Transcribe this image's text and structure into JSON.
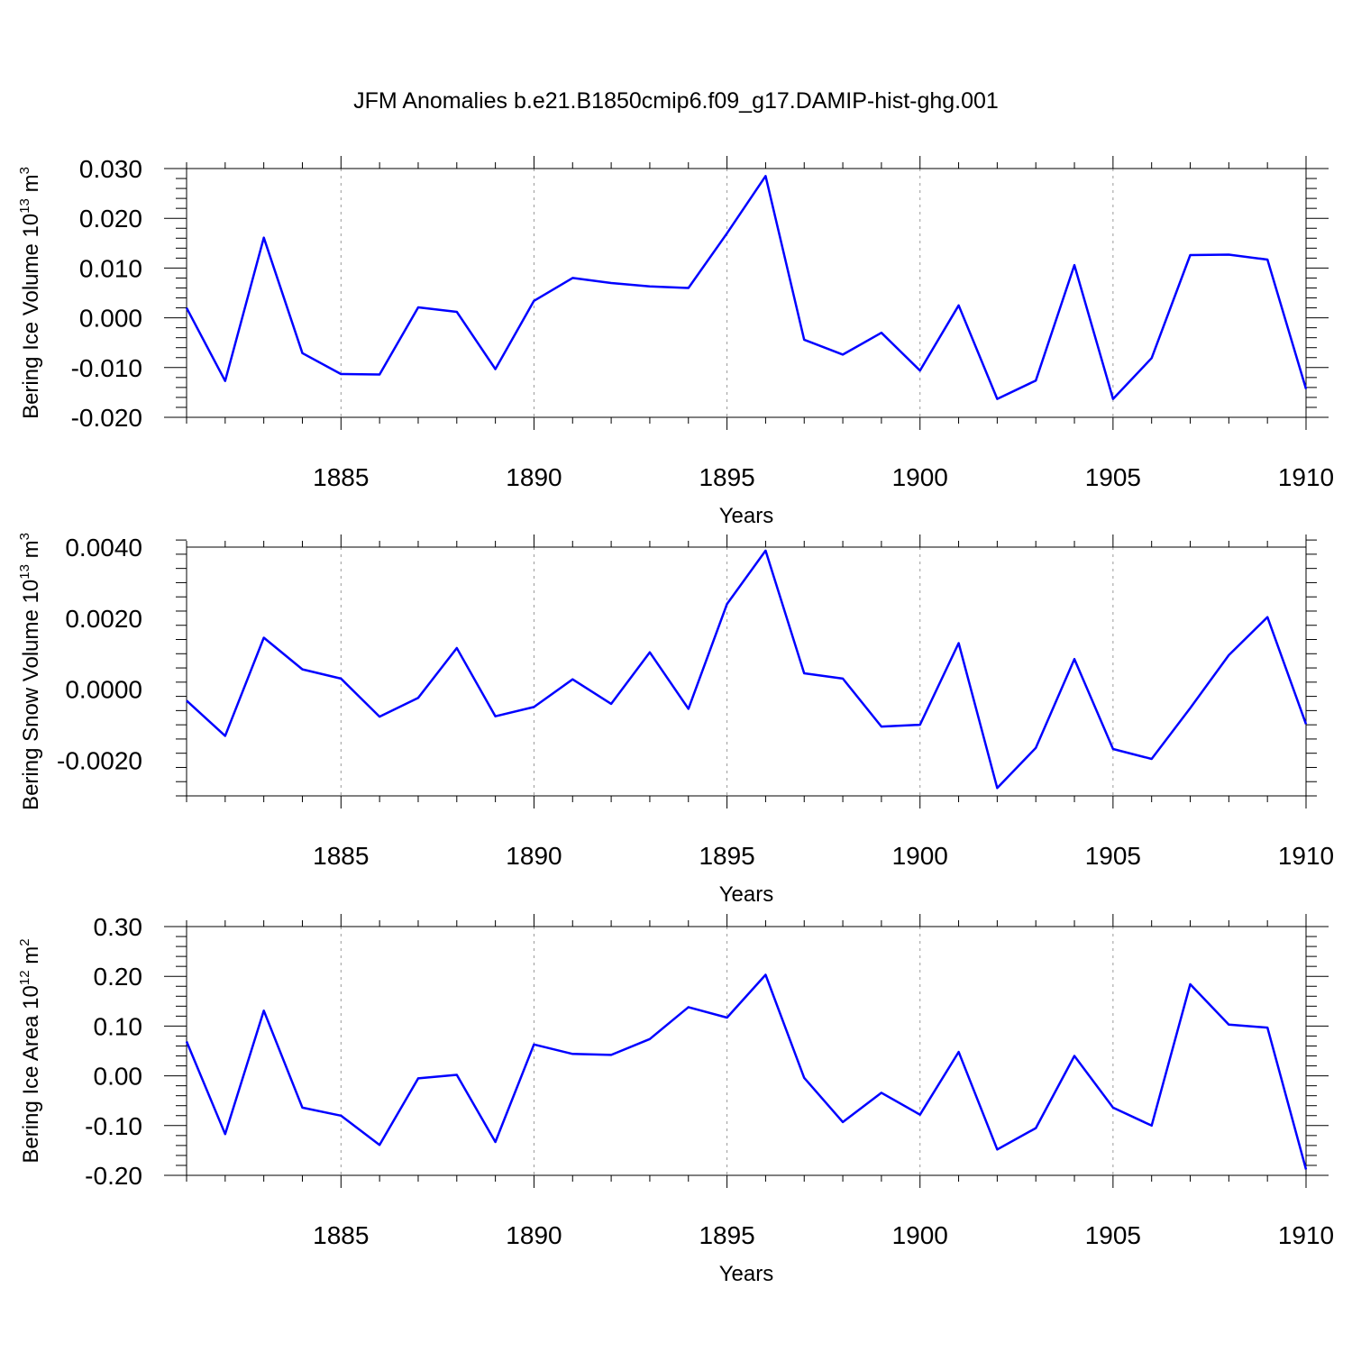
{
  "title": "JFM Anomalies b.e21.B1850cmip6.f09_g17.DAMIP-hist-ghg.001",
  "colors": {
    "line": "#0000ff",
    "axis": "#000000",
    "grid": "#999999"
  },
  "chart_data": [
    {
      "type": "line",
      "ylabel": "Bering Ice Volume 10",
      "ylabel_exp": "13",
      "ylabel_unit": " m",
      "ylabel_unit_exp": "3",
      "xlabel": "Years",
      "xlim": [
        1881,
        1910
      ],
      "ylim": [
        -0.02,
        0.03
      ],
      "yticks": [
        -0.02,
        -0.01,
        0.0,
        0.01,
        0.02,
        0.03
      ],
      "ytick_labels": [
        "-0.020",
        "-0.010",
        "0.000",
        "0.010",
        "0.020",
        "0.030"
      ],
      "xticks": [
        1885,
        1890,
        1895,
        1900,
        1905,
        1910
      ],
      "xtick_labels": [
        "1885",
        "1890",
        "1895",
        "1900",
        "1905",
        "1910"
      ],
      "x_minor_step": 1,
      "y_minor_step": 0.002,
      "grid": "vertical dotted at major x ticks",
      "series": [
        {
          "x": [
            1881,
            1882,
            1883,
            1884,
            1885,
            1886,
            1887,
            1888,
            1889,
            1890,
            1891,
            1892,
            1893,
            1894,
            1895,
            1896,
            1897,
            1898,
            1899,
            1900,
            1901,
            1902,
            1903,
            1904,
            1905,
            1906,
            1907,
            1908,
            1909,
            1910
          ],
          "values": [
            0.002,
            -0.0127,
            0.0161,
            -0.0071,
            -0.0113,
            -0.0114,
            0.0021,
            0.0012,
            -0.0103,
            0.0034,
            0.008,
            0.007,
            0.0063,
            0.006,
            0.017,
            0.0285,
            -0.0044,
            -0.0074,
            -0.003,
            -0.0106,
            0.0025,
            -0.0163,
            -0.0126,
            0.0106,
            -0.0163,
            -0.0081,
            0.0126,
            0.0127,
            0.0117,
            -0.0143
          ]
        }
      ]
    },
    {
      "type": "line",
      "ylabel": "Bering Snow Volume 10",
      "ylabel_exp": "13",
      "ylabel_unit": " m",
      "ylabel_unit_exp": "3",
      "xlabel": "Years",
      "xlim": [
        1881,
        1910
      ],
      "ylim": [
        -0.003,
        0.004
      ],
      "yticks": [
        -0.002,
        0.0,
        0.002,
        0.004
      ],
      "ytick_labels": [
        "-0.0020",
        "0.0000",
        "0.0020",
        "0.0040"
      ],
      "xticks": [
        1885,
        1890,
        1895,
        1900,
        1905,
        1910
      ],
      "xtick_labels": [
        "1885",
        "1890",
        "1895",
        "1900",
        "1905",
        "1910"
      ],
      "x_minor_step": 1,
      "y_minor_step": 0.0004,
      "grid": "vertical dotted at major x ticks",
      "series": [
        {
          "x": [
            1881,
            1882,
            1883,
            1884,
            1885,
            1886,
            1887,
            1888,
            1889,
            1890,
            1891,
            1892,
            1893,
            1894,
            1895,
            1896,
            1897,
            1898,
            1899,
            1900,
            1901,
            1902,
            1903,
            1904,
            1905,
            1906,
            1907,
            1908,
            1909,
            1910
          ],
          "values": [
            -0.00032,
            -0.00131,
            0.00145,
            0.00056,
            0.0003,
            -0.00077,
            -0.00024,
            0.00116,
            -0.00076,
            -0.0005,
            0.00028,
            -0.00041,
            0.00104,
            -0.00055,
            0.0024,
            0.0039,
            0.00045,
            0.0003,
            -0.00105,
            -0.001,
            0.0013,
            -0.00278,
            -0.00165,
            0.00085,
            -0.00168,
            -0.00196,
            -0.00053,
            0.00096,
            0.00203,
            -0.00098
          ]
        }
      ]
    },
    {
      "type": "line",
      "ylabel": "Bering Ice Area 10",
      "ylabel_exp": "12",
      "ylabel_unit": " m",
      "ylabel_unit_exp": "2",
      "xlabel": "Years",
      "xlim": [
        1881,
        1910
      ],
      "ylim": [
        -0.2,
        0.3
      ],
      "yticks": [
        -0.2,
        -0.1,
        0.0,
        0.1,
        0.2,
        0.3
      ],
      "ytick_labels": [
        "-0.20",
        "-0.10",
        "0.00",
        "0.10",
        "0.20",
        "0.30"
      ],
      "xticks": [
        1885,
        1890,
        1895,
        1900,
        1905,
        1910
      ],
      "xtick_labels": [
        "1885",
        "1890",
        "1895",
        "1900",
        "1905",
        "1910"
      ],
      "x_minor_step": 1,
      "y_minor_step": 0.02,
      "grid": "vertical dotted at major x ticks",
      "series": [
        {
          "x": [
            1881,
            1882,
            1883,
            1884,
            1885,
            1886,
            1887,
            1888,
            1889,
            1890,
            1891,
            1892,
            1893,
            1894,
            1895,
            1896,
            1897,
            1898,
            1899,
            1900,
            1901,
            1902,
            1903,
            1904,
            1905,
            1906,
            1907,
            1908,
            1909,
            1910
          ],
          "values": [
            0.069,
            -0.117,
            0.131,
            -0.064,
            -0.08,
            -0.139,
            -0.005,
            0.002,
            -0.133,
            0.063,
            0.044,
            0.042,
            0.074,
            0.138,
            0.117,
            0.203,
            -0.004,
            -0.093,
            -0.034,
            -0.078,
            0.048,
            -0.148,
            -0.105,
            0.04,
            -0.064,
            -0.1,
            0.184,
            0.103,
            0.097,
            -0.188
          ]
        }
      ]
    }
  ]
}
